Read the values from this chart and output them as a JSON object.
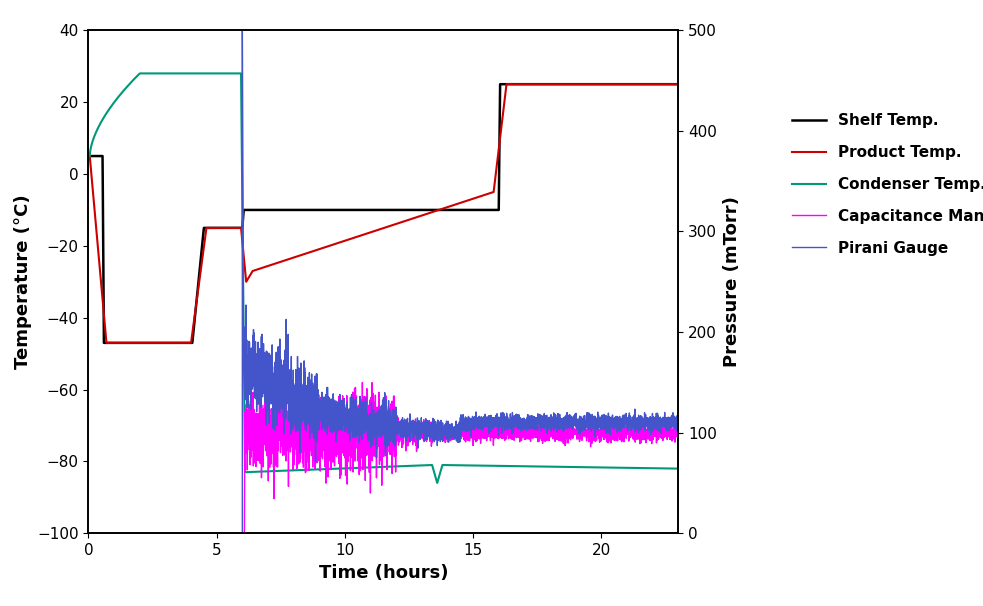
{
  "title": "",
  "xlabel": "Time (hours)",
  "ylabel_left": "Temperature (°C)",
  "ylabel_right": "Pressure (mTorr)",
  "xlim": [
    0,
    23
  ],
  "ylim_left": [
    -100,
    40
  ],
  "ylim_right": [
    0,
    500
  ],
  "yticks_left": [
    -100,
    -80,
    -60,
    -40,
    -20,
    0,
    20,
    40
  ],
  "yticks_right": [
    0,
    100,
    200,
    300,
    400,
    500
  ],
  "xticks": [
    0,
    5,
    10,
    15,
    20
  ],
  "colors": {
    "shelf": "#000000",
    "product": "#cc0000",
    "condenser": "#009977",
    "capacitance": "#ff00ff",
    "pirani": "#4455cc"
  },
  "legend": [
    "Shelf Temp.",
    "Product Temp.",
    "Condenser Temp.",
    "Capacitance Mannometer",
    "Pirani Gauge"
  ],
  "background": "#ffffff",
  "seed": 12345
}
